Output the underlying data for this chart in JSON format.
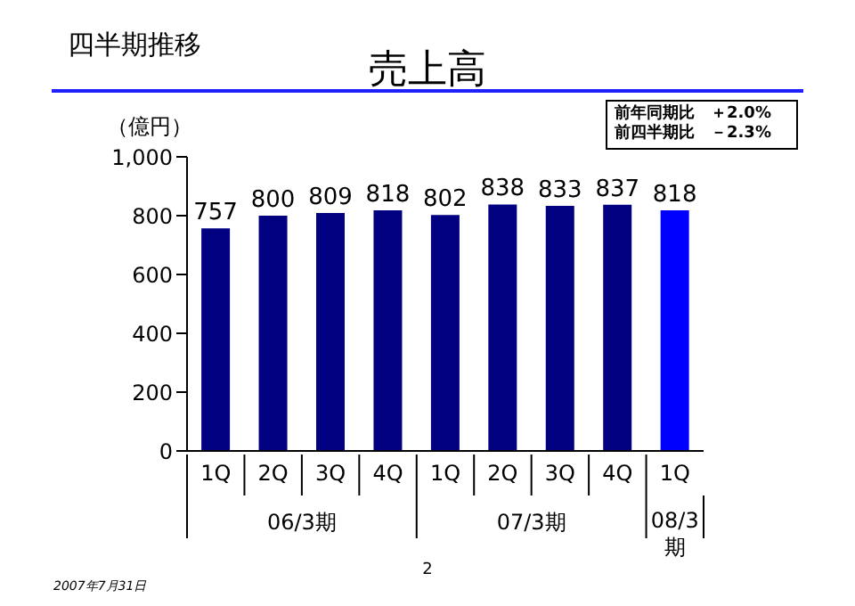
{
  "chart_data": {
    "type": "bar",
    "title": "売上高",
    "ylabel": "（億円）",
    "categories": [
      "1Q",
      "2Q",
      "3Q",
      "4Q",
      "1Q",
      "2Q",
      "3Q",
      "4Q",
      "1Q"
    ],
    "values": [
      757,
      800,
      809,
      818,
      802,
      838,
      833,
      837,
      818
    ],
    "colors": [
      "#000080",
      "#000080",
      "#000080",
      "#000080",
      "#000080",
      "#000080",
      "#000080",
      "#000080",
      "#0000ff"
    ],
    "ylim": [
      0,
      1000
    ],
    "yticks": [
      0,
      200,
      400,
      600,
      800,
      {
        "value": 1000,
        "label": "1,000"
      }
    ],
    "data_labels": true,
    "grid": false,
    "legend": false,
    "annotations": [
      "四半期推移",
      "前年同期比　＋2.0%",
      "前四半期比　－2.3%",
      "06/3期",
      "07/3期",
      "08/3期",
      "2",
      "2007年7月31日"
    ]
  }
}
